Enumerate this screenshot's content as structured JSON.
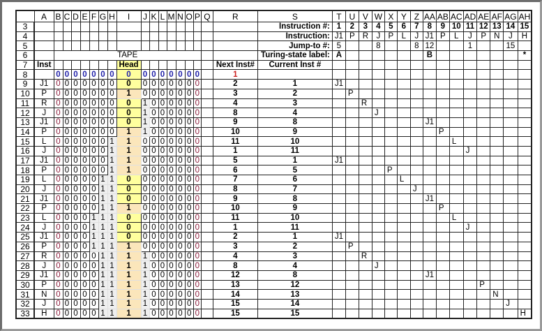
{
  "column_headers": [
    "A",
    "B",
    "C",
    "D",
    "E",
    "F",
    "G",
    "H",
    "I",
    "J",
    "K",
    "L",
    "M",
    "N",
    "O",
    "P",
    "Q",
    "R",
    "S",
    "T",
    "U",
    "V",
    "W",
    "X",
    "Y",
    "Z",
    "AA",
    "AB",
    "AC",
    "AD",
    "AE",
    "AF",
    "AG",
    "AH"
  ],
  "program": {
    "labels": {
      "instruction_number": "Instruction #:",
      "instruction": "Instruction:",
      "jump_to": "Jump-to #:",
      "state_label": "Turing-state label:"
    },
    "instruction_numbers": [
      "1",
      "2",
      "3",
      "4",
      "5",
      "6",
      "7",
      "8",
      "9",
      "10",
      "11",
      "12",
      "13",
      "14",
      "15"
    ],
    "instructions": [
      "J1",
      "P",
      "R",
      "J",
      "P",
      "L",
      "J",
      "J1",
      "P",
      "L",
      "J",
      "P",
      "N",
      "J",
      "H"
    ],
    "jump_to": [
      "5",
      "",
      "",
      "8",
      "",
      "",
      "8",
      "12",
      "",
      "",
      "1",
      "",
      "",
      "15",
      ""
    ],
    "state_labels": [
      "A",
      "",
      "",
      "",
      "",
      "",
      "",
      "B",
      "",
      "",
      "",
      "",
      "",
      "",
      "*"
    ]
  },
  "tape_label": "TAPE",
  "headers": {
    "inst": "Inst",
    "head": "Head",
    "next": "Next Inst#",
    "current": "Current Inst #"
  },
  "colors": {
    "initial_tape": "#1f1fa8",
    "initial_next": "#cc2222",
    "edge_zero": "#8b1a3a",
    "head_column": "#ffff9e",
    "head_one": "#fbe6bb"
  },
  "rows": [
    {
      "row": "8",
      "inst": "",
      "left": [
        "0",
        "0",
        "0",
        "0",
        "0",
        "0",
        "0"
      ],
      "head": "0",
      "right": [
        "0",
        "0",
        "0",
        "0",
        "0",
        "0",
        "0"
      ],
      "next": "1",
      "current": "",
      "trace": ""
    },
    {
      "row": "9",
      "inst": "J1",
      "left": [
        "0",
        "0",
        "0",
        "0",
        "0",
        "0",
        "0"
      ],
      "head": "0",
      "right": [
        "0",
        "0",
        "0",
        "0",
        "0",
        "0",
        "0"
      ],
      "next": "2",
      "current": "1",
      "trace": "J1"
    },
    {
      "row": "10",
      "inst": "P",
      "left": [
        "0",
        "0",
        "0",
        "0",
        "0",
        "0",
        "0"
      ],
      "head": "1",
      "right": [
        "0",
        "0",
        "0",
        "0",
        "0",
        "0",
        "0"
      ],
      "next": "3",
      "current": "2",
      "trace": "P"
    },
    {
      "row": "11",
      "inst": "R",
      "left": [
        "0",
        "0",
        "0",
        "0",
        "0",
        "0",
        "0"
      ],
      "head": "0",
      "right": [
        "1",
        "0",
        "0",
        "0",
        "0",
        "0",
        "0"
      ],
      "next": "4",
      "current": "3",
      "trace": "R"
    },
    {
      "row": "12",
      "inst": "J",
      "left": [
        "0",
        "0",
        "0",
        "0",
        "0",
        "0",
        "0"
      ],
      "head": "0",
      "right": [
        "1",
        "0",
        "0",
        "0",
        "0",
        "0",
        "0"
      ],
      "next": "8",
      "current": "4",
      "trace": "J"
    },
    {
      "row": "13",
      "inst": "J1",
      "left": [
        "0",
        "0",
        "0",
        "0",
        "0",
        "0",
        "0"
      ],
      "head": "0",
      "right": [
        "1",
        "0",
        "0",
        "0",
        "0",
        "0",
        "0"
      ],
      "next": "9",
      "current": "8",
      "trace": "J1"
    },
    {
      "row": "14",
      "inst": "P",
      "left": [
        "0",
        "0",
        "0",
        "0",
        "0",
        "0",
        "0"
      ],
      "head": "1",
      "right": [
        "1",
        "0",
        "0",
        "0",
        "0",
        "0",
        "0"
      ],
      "next": "10",
      "current": "9",
      "trace": "P"
    },
    {
      "row": "15",
      "inst": "L",
      "left": [
        "0",
        "0",
        "0",
        "0",
        "0",
        "0",
        "1"
      ],
      "head": "1",
      "right": [
        "0",
        "0",
        "0",
        "0",
        "0",
        "0",
        "0"
      ],
      "next": "11",
      "current": "10",
      "trace": "L"
    },
    {
      "row": "16",
      "inst": "J",
      "left": [
        "0",
        "0",
        "0",
        "0",
        "0",
        "0",
        "1"
      ],
      "head": "1",
      "right": [
        "0",
        "0",
        "0",
        "0",
        "0",
        "0",
        "0"
      ],
      "next": "1",
      "current": "11",
      "trace": "J"
    },
    {
      "row": "17",
      "inst": "J1",
      "left": [
        "0",
        "0",
        "0",
        "0",
        "0",
        "0",
        "1"
      ],
      "head": "1",
      "right": [
        "0",
        "0",
        "0",
        "0",
        "0",
        "0",
        "0"
      ],
      "next": "5",
      "current": "1",
      "trace": "J1"
    },
    {
      "row": "18",
      "inst": "P",
      "left": [
        "0",
        "0",
        "0",
        "0",
        "0",
        "0",
        "1"
      ],
      "head": "1",
      "right": [
        "0",
        "0",
        "0",
        "0",
        "0",
        "0",
        "0"
      ],
      "next": "6",
      "current": "5",
      "trace": "P"
    },
    {
      "row": "19",
      "inst": "L",
      "left": [
        "0",
        "0",
        "0",
        "0",
        "0",
        "1",
        "1"
      ],
      "head": "0",
      "right": [
        "0",
        "0",
        "0",
        "0",
        "0",
        "0",
        "0"
      ],
      "next": "7",
      "current": "6",
      "trace": "L"
    },
    {
      "row": "20",
      "inst": "J",
      "left": [
        "0",
        "0",
        "0",
        "0",
        "0",
        "1",
        "1"
      ],
      "head": "0",
      "right": [
        "0",
        "0",
        "0",
        "0",
        "0",
        "0",
        "0"
      ],
      "next": "8",
      "current": "7",
      "trace": "J"
    },
    {
      "row": "21",
      "inst": "J1",
      "left": [
        "0",
        "0",
        "0",
        "0",
        "0",
        "1",
        "1"
      ],
      "head": "0",
      "right": [
        "0",
        "0",
        "0",
        "0",
        "0",
        "0",
        "0"
      ],
      "next": "9",
      "current": "8",
      "trace": "J1"
    },
    {
      "row": "22",
      "inst": "P",
      "left": [
        "0",
        "0",
        "0",
        "0",
        "0",
        "1",
        "1"
      ],
      "head": "1",
      "right": [
        "0",
        "0",
        "0",
        "0",
        "0",
        "0",
        "0"
      ],
      "next": "10",
      "current": "9",
      "trace": "P"
    },
    {
      "row": "23",
      "inst": "L",
      "left": [
        "0",
        "0",
        "0",
        "0",
        "1",
        "1",
        "1"
      ],
      "head": "0",
      "right": [
        "0",
        "0",
        "0",
        "0",
        "0",
        "0",
        "0"
      ],
      "next": "11",
      "current": "10",
      "trace": "L"
    },
    {
      "row": "24",
      "inst": "J",
      "left": [
        "0",
        "0",
        "0",
        "0",
        "1",
        "1",
        "1"
      ],
      "head": "0",
      "right": [
        "0",
        "0",
        "0",
        "0",
        "0",
        "0",
        "0"
      ],
      "next": "1",
      "current": "11",
      "trace": "J"
    },
    {
      "row": "25",
      "inst": "J1",
      "left": [
        "0",
        "0",
        "0",
        "0",
        "1",
        "1",
        "1"
      ],
      "head": "0",
      "right": [
        "0",
        "0",
        "0",
        "0",
        "0",
        "0",
        "0"
      ],
      "next": "2",
      "current": "1",
      "trace": "J1"
    },
    {
      "row": "26",
      "inst": "P",
      "left": [
        "0",
        "0",
        "0",
        "0",
        "1",
        "1",
        "1"
      ],
      "head": "1",
      "right": [
        "0",
        "0",
        "0",
        "0",
        "0",
        "0",
        "0"
      ],
      "next": "3",
      "current": "2",
      "trace": "P"
    },
    {
      "row": "27",
      "inst": "R",
      "left": [
        "0",
        "0",
        "0",
        "0",
        "0",
        "1",
        "1"
      ],
      "head": "1",
      "right": [
        "1",
        "0",
        "0",
        "0",
        "0",
        "0",
        "0"
      ],
      "next": "4",
      "current": "3",
      "trace": "R"
    },
    {
      "row": "28",
      "inst": "J",
      "left": [
        "0",
        "0",
        "0",
        "0",
        "0",
        "1",
        "1"
      ],
      "head": "1",
      "right": [
        "1",
        "0",
        "0",
        "0",
        "0",
        "0",
        "0"
      ],
      "next": "8",
      "current": "4",
      "trace": "J"
    },
    {
      "row": "29",
      "inst": "J1",
      "left": [
        "0",
        "0",
        "0",
        "0",
        "0",
        "1",
        "1"
      ],
      "head": "1",
      "right": [
        "1",
        "0",
        "0",
        "0",
        "0",
        "0",
        "0"
      ],
      "next": "12",
      "current": "8",
      "trace": "J1"
    },
    {
      "row": "30",
      "inst": "P",
      "left": [
        "0",
        "0",
        "0",
        "0",
        "0",
        "1",
        "1"
      ],
      "head": "1",
      "right": [
        "1",
        "0",
        "0",
        "0",
        "0",
        "0",
        "0"
      ],
      "next": "13",
      "current": "12",
      "trace": "P"
    },
    {
      "row": "31",
      "inst": "N",
      "left": [
        "0",
        "0",
        "0",
        "0",
        "0",
        "1",
        "1"
      ],
      "head": "1",
      "right": [
        "1",
        "0",
        "0",
        "0",
        "0",
        "0",
        "0"
      ],
      "next": "14",
      "current": "13",
      "trace": "N"
    },
    {
      "row": "32",
      "inst": "J",
      "left": [
        "0",
        "0",
        "0",
        "0",
        "0",
        "1",
        "1"
      ],
      "head": "1",
      "right": [
        "1",
        "0",
        "0",
        "0",
        "0",
        "0",
        "0"
      ],
      "next": "15",
      "current": "14",
      "trace": "J"
    },
    {
      "row": "33",
      "inst": "H",
      "left": [
        "0",
        "0",
        "0",
        "0",
        "0",
        "1",
        "1"
      ],
      "head": "1",
      "right": [
        "1",
        "0",
        "0",
        "0",
        "0",
        "0",
        "0"
      ],
      "next": "15",
      "current": "15",
      "trace": "H"
    }
  ]
}
